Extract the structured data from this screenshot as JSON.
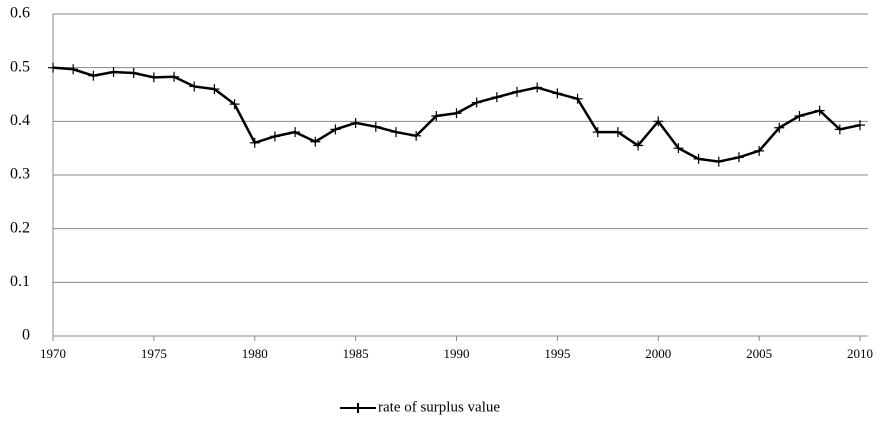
{
  "chart_data": {
    "type": "line",
    "x": [
      1970,
      1971,
      1972,
      1973,
      1974,
      1975,
      1976,
      1977,
      1978,
      1979,
      1980,
      1981,
      1982,
      1983,
      1984,
      1985,
      1986,
      1987,
      1988,
      1989,
      1990,
      1991,
      1992,
      1993,
      1994,
      1995,
      1996,
      1997,
      1998,
      1999,
      2000,
      2001,
      2002,
      2003,
      2004,
      2005,
      2006,
      2007,
      2008,
      2009,
      2010
    ],
    "series": [
      {
        "name": "rate of surplus value",
        "color": "#000000",
        "values": [
          0.5,
          0.497,
          0.485,
          0.492,
          0.49,
          0.482,
          0.483,
          0.465,
          0.46,
          0.432,
          0.36,
          0.372,
          0.38,
          0.362,
          0.385,
          0.397,
          0.39,
          0.38,
          0.373,
          0.41,
          0.415,
          0.435,
          0.445,
          0.455,
          0.463,
          0.452,
          0.442,
          0.38,
          0.38,
          0.355,
          0.4,
          0.35,
          0.33,
          0.325,
          0.333,
          0.345,
          0.388,
          0.41,
          0.42,
          0.385,
          0.393
        ]
      }
    ],
    "xlim": [
      1970,
      2010
    ],
    "xticks": [
      1970,
      1975,
      1980,
      1985,
      1990,
      1995,
      2000,
      2005,
      2010
    ],
    "ylim": [
      0,
      0.6
    ],
    "yticks": [
      0,
      0.1,
      0.2,
      0.3,
      0.4,
      0.5,
      0.6
    ],
    "grid": true,
    "legend": "bottom"
  }
}
